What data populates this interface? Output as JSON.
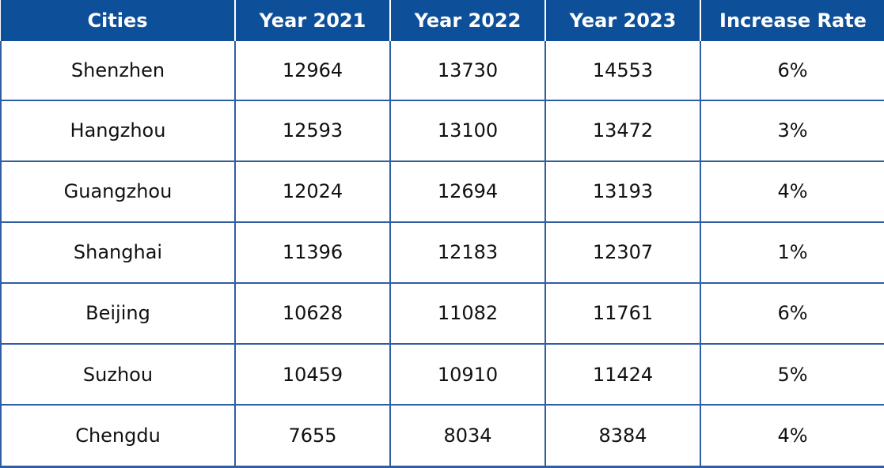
{
  "chart_data": {
    "type": "table",
    "columns": [
      "Cities",
      "Year 2021",
      "Year 2022",
      "Year 2023",
      "Increase Rate"
    ],
    "rows": [
      [
        "Shenzhen",
        "12964",
        "13730",
        "14553",
        "6%"
      ],
      [
        "Hangzhou",
        "12593",
        "13100",
        "13472",
        "3%"
      ],
      [
        "Guangzhou",
        "12024",
        "12694",
        "13193",
        "4%"
      ],
      [
        "Shanghai",
        "11396",
        "12183",
        "12307",
        "1%"
      ],
      [
        "Beijing",
        "10628",
        "11082",
        "11761",
        "6%"
      ],
      [
        "Suzhou",
        "10459",
        "10910",
        "11424",
        "5%"
      ],
      [
        "Chengdu",
        "7655",
        "8034",
        "8384",
        "4%"
      ]
    ],
    "colors": {
      "header_background": "#0d4f99",
      "header_text": "#ffffff",
      "grid_line": "#2f5fa3",
      "cell_text": "#111111"
    }
  }
}
